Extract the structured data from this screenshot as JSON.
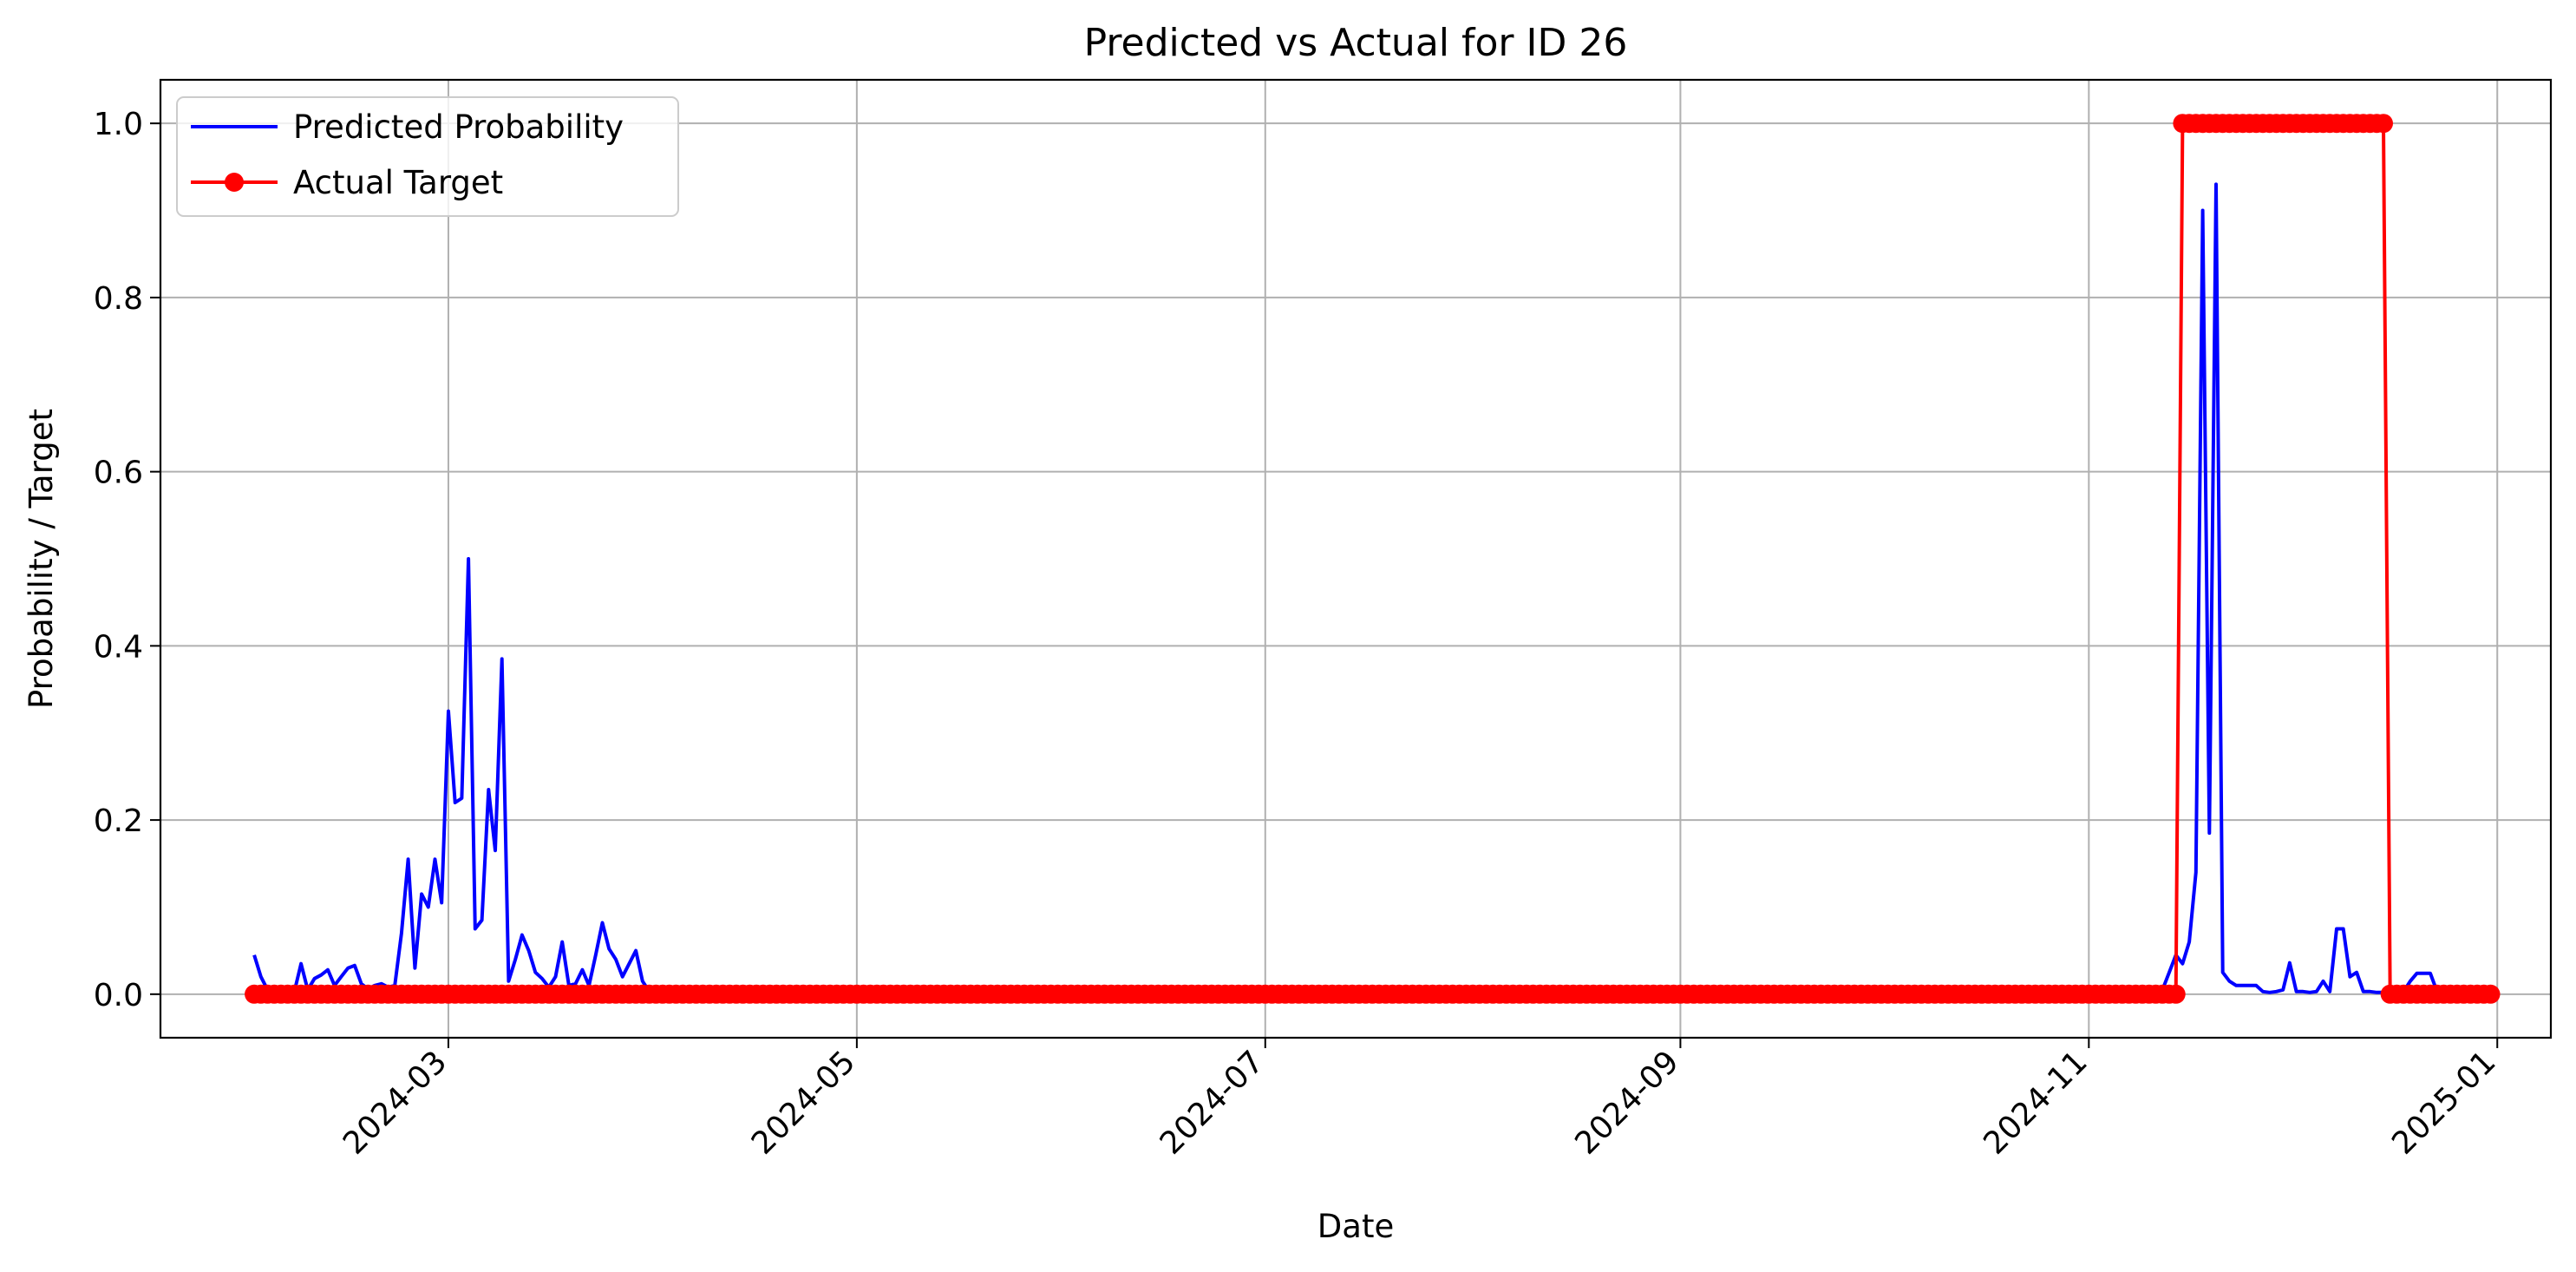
{
  "chart_data": {
    "type": "line",
    "title": "Predicted vs Actual for ID 26",
    "xlabel": "Date",
    "ylabel": "Probability / Target",
    "xlim": [
      "2024-01-18",
      "2025-01-09"
    ],
    "ylim": [
      -0.05,
      1.05
    ],
    "x_ticks": [
      "2024-03-01",
      "2024-05-01",
      "2024-07-01",
      "2024-09-01",
      "2024-11-01",
      "2025-01-01"
    ],
    "x_tick_labels": [
      "2024-03",
      "2024-05",
      "2024-07",
      "2024-09",
      "2024-11",
      "2025-01"
    ],
    "y_ticks": [
      0.0,
      0.2,
      0.4,
      0.6,
      0.8,
      1.0
    ],
    "y_tick_labels": [
      "0.0",
      "0.2",
      "0.4",
      "0.6",
      "0.8",
      "1.0"
    ],
    "grid": true,
    "legend_position": "upper-left",
    "series": [
      {
        "name": "Predicted Probability",
        "color": "#0000ff",
        "marker": "none",
        "points": [
          [
            "2024-02-01",
            0.045
          ],
          [
            "2024-02-02",
            0.02
          ],
          [
            "2024-02-03",
            0.005
          ],
          [
            "2024-02-04",
            0.002
          ],
          [
            "2024-02-05",
            0.003
          ],
          [
            "2024-02-06",
            0.002
          ],
          [
            "2024-02-07",
            0.003
          ],
          [
            "2024-02-08",
            0.035
          ],
          [
            "2024-02-09",
            0.005
          ],
          [
            "2024-02-10",
            0.018
          ],
          [
            "2024-02-11",
            0.022
          ],
          [
            "2024-02-12",
            0.028
          ],
          [
            "2024-02-13",
            0.01
          ],
          [
            "2024-02-14",
            0.02
          ],
          [
            "2024-02-15",
            0.03
          ],
          [
            "2024-02-16",
            0.033
          ],
          [
            "2024-02-17",
            0.012
          ],
          [
            "2024-02-18",
            0.006
          ],
          [
            "2024-02-19",
            0.01
          ],
          [
            "2024-02-20",
            0.012
          ],
          [
            "2024-02-21",
            0.008
          ],
          [
            "2024-02-22",
            0.01
          ],
          [
            "2024-02-23",
            0.07
          ],
          [
            "2024-02-24",
            0.155
          ],
          [
            "2024-02-25",
            0.03
          ],
          [
            "2024-02-26",
            0.115
          ],
          [
            "2024-02-27",
            0.1
          ],
          [
            "2024-02-28",
            0.155
          ],
          [
            "2024-02-29",
            0.105
          ],
          [
            "2024-03-01",
            0.325
          ],
          [
            "2024-03-02",
            0.22
          ],
          [
            "2024-03-03",
            0.225
          ],
          [
            "2024-03-04",
            0.5
          ],
          [
            "2024-03-05",
            0.075
          ],
          [
            "2024-03-06",
            0.085
          ],
          [
            "2024-03-07",
            0.235
          ],
          [
            "2024-03-08",
            0.165
          ],
          [
            "2024-03-09",
            0.385
          ],
          [
            "2024-03-10",
            0.015
          ],
          [
            "2024-03-11",
            0.04
          ],
          [
            "2024-03-12",
            0.068
          ],
          [
            "2024-03-13",
            0.05
          ],
          [
            "2024-03-14",
            0.025
          ],
          [
            "2024-03-15",
            0.018
          ],
          [
            "2024-03-16",
            0.008
          ],
          [
            "2024-03-17",
            0.02
          ],
          [
            "2024-03-18",
            0.06
          ],
          [
            "2024-03-19",
            0.01
          ],
          [
            "2024-03-20",
            0.012
          ],
          [
            "2024-03-21",
            0.028
          ],
          [
            "2024-03-22",
            0.01
          ],
          [
            "2024-03-23",
            0.045
          ],
          [
            "2024-03-24",
            0.082
          ],
          [
            "2024-03-25",
            0.052
          ],
          [
            "2024-03-26",
            0.04
          ],
          [
            "2024-03-27",
            0.02
          ],
          [
            "2024-03-28",
            0.035
          ],
          [
            "2024-03-29",
            0.05
          ],
          [
            "2024-03-30",
            0.015
          ],
          [
            "2024-03-31",
            0.003
          ],
          [
            "2024-11-12",
            0.005
          ],
          [
            "2024-11-13",
            0.025
          ],
          [
            "2024-11-14",
            0.045
          ],
          [
            "2024-11-15",
            0.035
          ],
          [
            "2024-11-16",
            0.06
          ],
          [
            "2024-11-17",
            0.14
          ],
          [
            "2024-11-18",
            0.9
          ],
          [
            "2024-11-19",
            0.185
          ],
          [
            "2024-11-20",
            0.93
          ],
          [
            "2024-11-21",
            0.025
          ],
          [
            "2024-11-22",
            0.015
          ],
          [
            "2024-11-23",
            0.01
          ],
          [
            "2024-11-24",
            0.01
          ],
          [
            "2024-11-25",
            0.01
          ],
          [
            "2024-11-26",
            0.01
          ],
          [
            "2024-11-27",
            0.003
          ],
          [
            "2024-11-28",
            0.002
          ],
          [
            "2024-11-29",
            0.003
          ],
          [
            "2024-11-30",
            0.005
          ],
          [
            "2024-12-01",
            0.036
          ],
          [
            "2024-12-02",
            0.003
          ],
          [
            "2024-12-03",
            0.003
          ],
          [
            "2024-12-04",
            0.002
          ],
          [
            "2024-12-05",
            0.003
          ],
          [
            "2024-12-06",
            0.015
          ],
          [
            "2024-12-07",
            0.003
          ],
          [
            "2024-12-08",
            0.075
          ],
          [
            "2024-12-09",
            0.075
          ],
          [
            "2024-12-10",
            0.02
          ],
          [
            "2024-12-11",
            0.025
          ],
          [
            "2024-12-12",
            0.003
          ],
          [
            "2024-12-13",
            0.003
          ],
          [
            "2024-12-14",
            0.002
          ],
          [
            "2024-12-15",
            0.002
          ],
          [
            "2024-12-16",
            0.003
          ],
          [
            "2024-12-17",
            0.005
          ],
          [
            "2024-12-18",
            0.003
          ],
          [
            "2024-12-19",
            0.015
          ],
          [
            "2024-12-20",
            0.024
          ],
          [
            "2024-12-21",
            0.024
          ],
          [
            "2024-12-22",
            0.024
          ],
          [
            "2024-12-23",
            0.003
          ],
          [
            "2024-12-24",
            0.003
          ],
          [
            "2024-12-25",
            0.002
          ],
          [
            "2024-12-26",
            0.002
          ],
          [
            "2024-12-27",
            0.002
          ],
          [
            "2024-12-28",
            0.002
          ],
          [
            "2024-12-29",
            0.002
          ],
          [
            "2024-12-30",
            0.002
          ],
          [
            "2024-12-31",
            0.002
          ]
        ]
      },
      {
        "name": "Actual Target",
        "color": "#ff0000",
        "marker": "circle",
        "segments": [
          {
            "start": "2024-02-01",
            "end": "2024-11-14",
            "value": 0
          },
          {
            "start": "2024-11-15",
            "end": "2024-12-15",
            "value": 1
          },
          {
            "start": "2024-12-16",
            "end": "2024-12-31",
            "value": 0
          }
        ]
      }
    ]
  }
}
